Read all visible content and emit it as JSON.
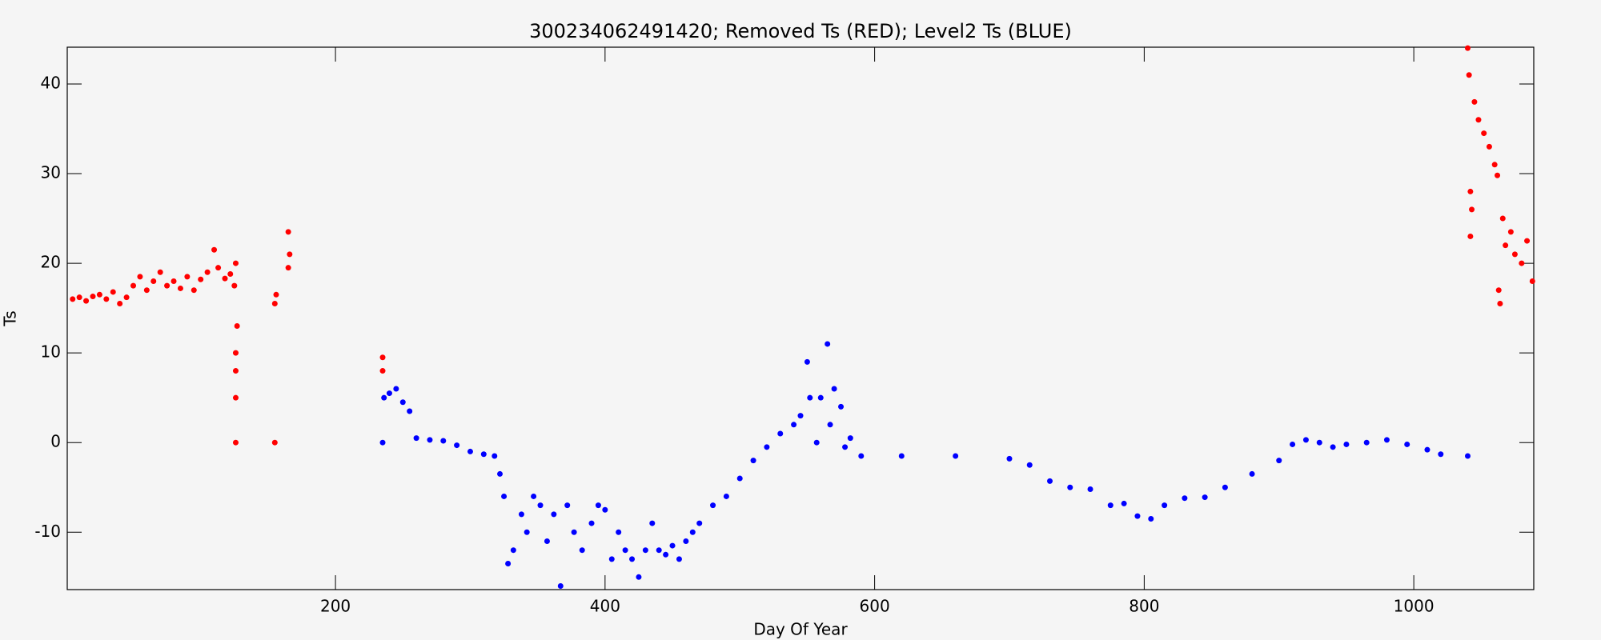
{
  "chart_data": {
    "type": "scatter",
    "title": "300234062491420; Removed Ts (RED); Level2 Ts (BLUE)",
    "x_label": "Day Of Year",
    "y_label": "Ts",
    "xlim": [
      1,
      1089
    ],
    "ylim": [
      -16.4,
      44.1
    ],
    "xticks": [
      200,
      400,
      600,
      800,
      1000
    ],
    "yticks": [
      -10,
      0,
      10,
      20,
      30,
      40
    ],
    "series": [
      {
        "color": "#ff0000",
        "x": [
          5,
          10,
          15,
          20,
          25,
          30,
          35,
          40,
          45,
          50,
          55,
          60,
          65,
          70,
          75,
          80,
          85,
          90,
          95,
          100,
          105,
          110,
          113,
          118,
          122,
          125,
          126,
          126,
          126,
          126,
          126,
          127,
          155,
          155,
          156,
          165,
          165,
          166,
          235,
          235,
          1040,
          1041,
          1042,
          1042,
          1043,
          1045,
          1048,
          1052,
          1056,
          1060,
          1062,
          1063,
          1064,
          1066,
          1068,
          1072,
          1075,
          1080,
          1084,
          1088
        ],
        "values": [
          16,
          16.2,
          15.8,
          16.3,
          16.5,
          16,
          16.8,
          15.5,
          16.2,
          17.5,
          18.5,
          17,
          18,
          19,
          17.5,
          18,
          17.2,
          18.5,
          17,
          18.2,
          19,
          21.5,
          19.5,
          18.3,
          18.8,
          17.5,
          20,
          10,
          8,
          5,
          0,
          13,
          0,
          15.5,
          16.5,
          19.5,
          23.5,
          21,
          9.5,
          8,
          44,
          41,
          28,
          23,
          26,
          38,
          36,
          34.5,
          33,
          31,
          29.8,
          17,
          15.5,
          25,
          22,
          23.5,
          21,
          20,
          22.5,
          18
        ]
      },
      {
        "color": "#0000ff",
        "x": [
          235,
          236,
          240,
          245,
          250,
          255,
          260,
          270,
          280,
          290,
          300,
          310,
          318,
          322,
          325,
          328,
          332,
          338,
          342,
          347,
          352,
          357,
          362,
          367,
          372,
          377,
          383,
          390,
          395,
          400,
          405,
          410,
          415,
          420,
          425,
          430,
          435,
          440,
          445,
          450,
          455,
          460,
          465,
          470,
          480,
          490,
          500,
          510,
          520,
          530,
          540,
          545,
          550,
          552,
          557,
          560,
          565,
          567,
          570,
          575,
          578,
          582,
          590,
          620,
          660,
          700,
          715,
          730,
          745,
          760,
          775,
          785,
          795,
          805,
          815,
          830,
          845,
          860,
          880,
          900,
          910,
          920,
          930,
          940,
          950,
          965,
          980,
          995,
          1010,
          1020,
          1040
        ],
        "values": [
          0,
          5,
          5.5,
          6,
          4.5,
          3.5,
          0.5,
          0.3,
          0.2,
          -0.3,
          -1,
          -1.3,
          -1.5,
          -3.5,
          -6,
          -13.5,
          -12,
          -8,
          -10,
          -6,
          -7,
          -11,
          -8,
          -16,
          -7,
          -10,
          -12,
          -9,
          -7,
          -7.5,
          -13,
          -10,
          -12,
          -13,
          -15,
          -12,
          -9,
          -12,
          -12.5,
          -11.5,
          -13,
          -11,
          -10,
          -9,
          -7,
          -6,
          -4,
          -2,
          -0.5,
          1,
          2,
          3,
          9,
          5,
          0,
          5,
          11,
          2,
          6,
          4,
          -0.5,
          0.5,
          -1.5,
          -1.5,
          -1.5,
          -1.8,
          -2.5,
          -4.3,
          -5,
          -5.2,
          -7,
          -6.8,
          -8.2,
          -8.5,
          -7,
          -6.2,
          -6.1,
          -5,
          -3.5,
          -2,
          -0.2,
          0.3,
          0,
          -0.5,
          -0.2,
          0,
          0.3,
          -0.2,
          -0.8,
          -1.3,
          -1.5
        ]
      }
    ]
  }
}
